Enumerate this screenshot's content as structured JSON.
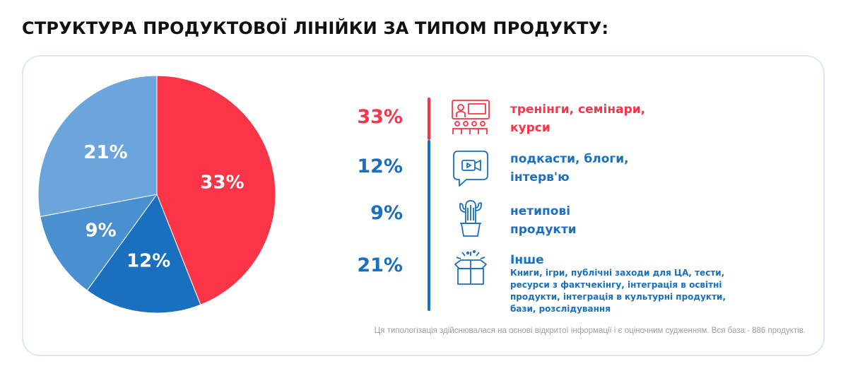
{
  "title": "СТРУКТУРА ПРОДУКТОВОЇ ЛІНІЙКИ ЗА ТИПОМ ПРОДУКТУ:",
  "colors": {
    "red": "#fb3448",
    "dark_blue": "#1a6fbf",
    "mid_blue": "#4a90d0",
    "light_blue": "#6ba5dc"
  },
  "chart_data": {
    "type": "pie",
    "slices": [
      {
        "label": "33%",
        "value": 33,
        "color": "#fb3448"
      },
      {
        "label": "12%",
        "value": 12,
        "color": "#1a6fbf"
      },
      {
        "label": "9%",
        "value": 9,
        "color": "#4a90d0"
      },
      {
        "label": "21%",
        "value": 21,
        "color": "#6ba5dc"
      }
    ]
  },
  "legend": [
    {
      "value": "33%",
      "label_line1": "тренінги, семінари,",
      "label_line2": "курси",
      "icon": "training-icon",
      "color": "#fb3448"
    },
    {
      "value": "12%",
      "label_line1": "подкасти, блоги,",
      "label_line2": "інтерв'ю",
      "icon": "video-chat-icon",
      "color": "#1a6fbf"
    },
    {
      "value": "9%",
      "label_line1": "нетипові",
      "label_line2": "продукти",
      "icon": "cactus-icon",
      "color": "#1a6fbf"
    },
    {
      "value": "21%",
      "label_line1": "Інше",
      "label_line2": "",
      "icon": "gift-box-icon",
      "color": "#1a6fbf",
      "description": "Книги, ігри, публічні заходи для ЦА, тести, ресурси з фактчекінгу, інтеграція в освітні продукти, інтеграція в культурні продукти, бази, розслідування"
    }
  ],
  "footnote": "Ця типологізація здійснювалася на основі відкритої інформації і є оціночним судженням. Вся база - 886 продуктів."
}
